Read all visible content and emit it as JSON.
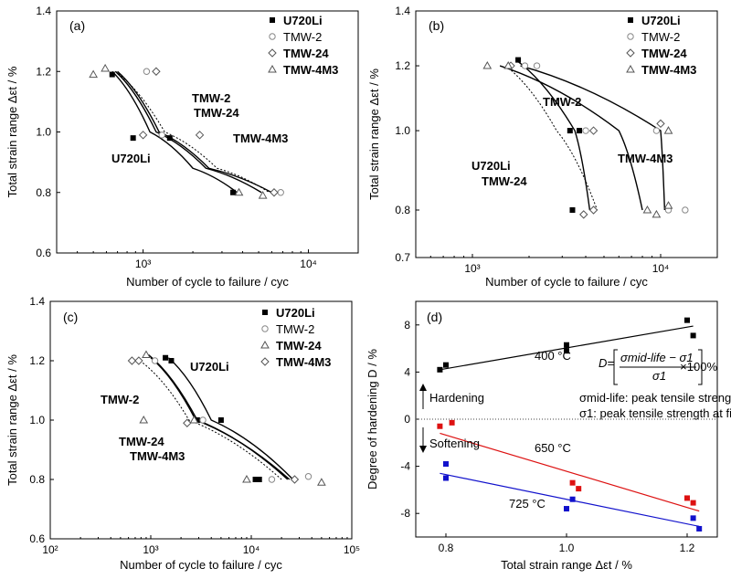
{
  "chart_data": [
    {
      "type": "scatter",
      "panel_label": "(a)",
      "xlabel": "Number of cycle to failure / cyc",
      "ylabel": "Total strain range Δεt / %",
      "xscale": "log",
      "xlim": [
        300,
        20000
      ],
      "ylim": [
        0.6,
        1.4
      ],
      "yticks": [
        "0.6",
        "0.8",
        "1.0",
        "1.2",
        "1.4"
      ],
      "xticks": [
        {
          "value": 1000,
          "label": "10³"
        },
        {
          "value": 10000,
          "label": "10⁴"
        }
      ],
      "legend_position": "top-right",
      "series": [
        {
          "name": "U720Li",
          "marker": "square",
          "points": [
            [
              650,
              1.19
            ],
            [
              870,
              0.98
            ],
            [
              1450,
              0.98
            ],
            [
              3500,
              0.8
            ]
          ]
        },
        {
          "name": "TMW-2",
          "marker": "circle",
          "points": [
            [
              1050,
              1.2
            ],
            [
              1300,
              0.99
            ],
            [
              6800,
              0.8
            ]
          ]
        },
        {
          "name": "TMW-24",
          "marker": "diamond",
          "points": [
            [
              1200,
              1.2
            ],
            [
              1000,
              0.99
            ],
            [
              2200,
              0.99
            ],
            [
              6200,
              0.8
            ]
          ]
        },
        {
          "name": "TMW-4M3",
          "marker": "triangle",
          "points": [
            [
              500,
              1.19
            ],
            [
              590,
              1.21
            ],
            [
              3800,
              0.8
            ],
            [
              5300,
              0.79
            ]
          ]
        }
      ],
      "curves": [
        {
          "name": "U720Li",
          "label": "U720Li",
          "points": [
            [
              650,
              1.2
            ],
            [
              1100,
              1.0
            ],
            [
              2000,
              0.88
            ],
            [
              3700,
              0.8
            ]
          ]
        },
        {
          "name": "TMW-2",
          "label": "TMW-2",
          "points": [
            [
              700,
              1.2
            ],
            [
              1250,
              1.0
            ],
            [
              2500,
              0.88
            ],
            [
              6000,
              0.8
            ]
          ]
        },
        {
          "name": "TMW-24",
          "label": "TMW-24",
          "points": [
            [
              680,
              1.2
            ],
            [
              1200,
              1.0
            ],
            [
              2400,
              0.88
            ],
            [
              5200,
              0.8
            ]
          ]
        },
        {
          "name": "TMW-4M3",
          "label": "TMW-4M3",
          "points": [
            [
              680,
              1.2
            ],
            [
              1350,
              1.0
            ],
            [
              2800,
              0.88
            ],
            [
              5800,
              0.8
            ]
          ],
          "dashed": true
        }
      ]
    },
    {
      "type": "scatter",
      "panel_label": "(b)",
      "xlabel": "Number of cycle to failure / cyc",
      "ylabel": "Total strain range Δεt / %",
      "xscale": "log",
      "yscale": "log",
      "xlim": [
        500,
        20000
      ],
      "ylim": [
        0.7,
        1.4
      ],
      "yticks": [
        "0.7",
        "0.8",
        "1.0",
        "1.2",
        "1.4"
      ],
      "xticks": [
        {
          "value": 1000,
          "label": "10³"
        },
        {
          "value": 10000,
          "label": "10⁴"
        }
      ],
      "legend_position": "top-right",
      "series": [
        {
          "name": "U720Li",
          "marker": "square",
          "points": [
            [
              1750,
              1.22
            ],
            [
              3300,
              1.0
            ],
            [
              3700,
              1.0
            ],
            [
              3400,
              0.8
            ]
          ]
        },
        {
          "name": "TMW-2",
          "marker": "circle",
          "points": [
            [
              1900,
              1.2
            ],
            [
              2200,
              1.2
            ],
            [
              4000,
              1.0
            ],
            [
              9500,
              1.0
            ],
            [
              13500,
              0.8
            ],
            [
              11000,
              0.8
            ]
          ]
        },
        {
          "name": "TMW-24",
          "marker": "diamond",
          "points": [
            [
              1600,
              1.2
            ],
            [
              4400,
              1.0
            ],
            [
              10000,
              1.02
            ],
            [
              4400,
              0.8
            ],
            [
              3900,
              0.79
            ]
          ]
        },
        {
          "name": "TMW-4M3",
          "marker": "triangle",
          "points": [
            [
              1200,
              1.2
            ],
            [
              1550,
              1.2
            ],
            [
              11000,
              1.0
            ],
            [
              8500,
              0.8
            ],
            [
              9500,
              0.79
            ],
            [
              11000,
              0.81
            ]
          ]
        }
      ],
      "curves": [
        {
          "name": "U720Li",
          "label": "U720Li",
          "points": [
            [
              1700,
              1.22
            ],
            [
              3500,
              1.0
            ],
            [
              4200,
              0.8
            ]
          ]
        },
        {
          "name": "TMW-2",
          "label": "TMW-2",
          "points": [
            [
              1400,
              1.2
            ],
            [
              6000,
              1.0
            ],
            [
              8000,
              0.8
            ]
          ]
        },
        {
          "name": "TMW-24",
          "label": "TMW-24",
          "points": [
            [
              1500,
              1.2
            ],
            [
              2800,
              1.0
            ],
            [
              4600,
              0.8
            ]
          ],
          "dashed": true
        },
        {
          "name": "TMW-4M3",
          "label": "TMW-4M3",
          "points": [
            [
              1800,
              1.2
            ],
            [
              10000,
              1.0
            ],
            [
              10500,
              0.8
            ]
          ]
        }
      ]
    },
    {
      "type": "scatter",
      "panel_label": "(c)",
      "xlabel": "Number of cycle to failure / cyc",
      "ylabel": "Total strain range Δεt / %",
      "xscale": "log",
      "xlim": [
        100,
        100000
      ],
      "ylim": [
        0.6,
        1.4
      ],
      "yticks": [
        "0.6",
        "0.8",
        "1.0",
        "1.2",
        "1.4"
      ],
      "xticks": [
        {
          "value": 100,
          "label": "10²"
        },
        {
          "value": 1000,
          "label": "10³"
        },
        {
          "value": 10000,
          "label": "10⁴"
        },
        {
          "value": 100000,
          "label": "10⁵"
        }
      ],
      "legend_position": "top-right",
      "series": [
        {
          "name": "U720Li",
          "marker": "square",
          "points": [
            [
              1400,
              1.21
            ],
            [
              1600,
              1.2
            ],
            [
              2900,
              1.0
            ],
            [
              5000,
              1.0
            ],
            [
              11000,
              0.8
            ],
            [
              12000,
              0.8
            ]
          ]
        },
        {
          "name": "TMW-2",
          "marker": "circle",
          "points": [
            [
              1100,
              1.2
            ],
            [
              3300,
              1.0
            ],
            [
              16000,
              0.8
            ],
            [
              37000,
              0.81
            ]
          ]
        },
        {
          "name": "TMW-24",
          "marker": "triangle",
          "points": [
            [
              900,
              1.22
            ],
            [
              850,
              1.0
            ],
            [
              2700,
              1.0
            ],
            [
              9000,
              0.8
            ],
            [
              50000,
              0.79
            ]
          ]
        },
        {
          "name": "TMW-4M3",
          "marker": "diamond",
          "points": [
            [
              650,
              1.2
            ],
            [
              760,
              1.2
            ],
            [
              2300,
              0.99
            ],
            [
              27000,
              0.8
            ]
          ]
        }
      ],
      "curves": [
        {
          "name": "U720Li",
          "label": "U720Li",
          "points": [
            [
              1500,
              1.21
            ],
            [
              4000,
              1.0
            ],
            [
              26000,
              0.8
            ]
          ]
        },
        {
          "name": "TMW-2",
          "label": "TMW-2",
          "points": [
            [
              1000,
              1.21
            ],
            [
              2800,
              1.0
            ],
            [
              24000,
              0.8
            ]
          ]
        },
        {
          "name": "TMW-24",
          "label": "TMW-24",
          "points": [
            [
              950,
              1.22
            ],
            [
              2900,
              1.0
            ],
            [
              23000,
              0.8
            ]
          ]
        },
        {
          "name": "TMW-4M3",
          "label": "TMW-4M3",
          "points": [
            [
              780,
              1.2
            ],
            [
              2400,
              1.0
            ],
            [
              20000,
              0.8
            ]
          ],
          "dashed": true
        }
      ]
    },
    {
      "type": "scatter",
      "panel_label": "(d)",
      "xlabel": "Total strain range Δεt / %",
      "ylabel": "Degree of hardening D / %",
      "xlim": [
        0.75,
        1.25
      ],
      "ylim": [
        -10,
        10
      ],
      "yticks": [
        "8",
        "4",
        "0",
        "-4",
        "-8"
      ],
      "xticks": [
        "0.8",
        "1.0",
        "1.2"
      ],
      "series": [
        {
          "name": "400 °C",
          "color": "#000000",
          "marker": "square",
          "points": [
            [
              0.79,
              4.2
            ],
            [
              0.8,
              4.6
            ],
            [
              1.0,
              5.8
            ],
            [
              1.0,
              6.3
            ],
            [
              1.2,
              8.4
            ],
            [
              1.21,
              7.1
            ]
          ],
          "fit": [
            [
              0.79,
              4.2
            ],
            [
              1.21,
              7.9
            ]
          ]
        },
        {
          "name": "650 °C",
          "color": "#dd1111",
          "marker": "square",
          "points": [
            [
              0.79,
              -0.6
            ],
            [
              0.81,
              -0.3
            ],
            [
              1.01,
              -5.4
            ],
            [
              1.02,
              -5.9
            ],
            [
              1.2,
              -6.7
            ],
            [
              1.21,
              -7.1
            ]
          ],
          "fit": [
            [
              0.79,
              -1.2
            ],
            [
              1.22,
              -7.8
            ]
          ]
        },
        {
          "name": "725 °C",
          "color": "#1111cc",
          "marker": "square",
          "points": [
            [
              0.8,
              -3.8
            ],
            [
              0.8,
              -5.0
            ],
            [
              1.0,
              -7.6
            ],
            [
              1.01,
              -6.8
            ],
            [
              1.21,
              -8.4
            ],
            [
              1.22,
              -9.3
            ]
          ],
          "fit": [
            [
              0.79,
              -4.6
            ],
            [
              1.22,
              -9.1
            ]
          ]
        }
      ],
      "annotations": {
        "hardening": "Hardening",
        "softening": "Softening",
        "eq_lhs": "D=",
        "eq_num": "σmid-life − σ1",
        "eq_den": "σ1",
        "eq_rhs": "×100%",
        "def1": "σmid-life: peak tensile strength at mid-life",
        "def2": "σ1: peak tensile strength at first cycle"
      }
    }
  ]
}
